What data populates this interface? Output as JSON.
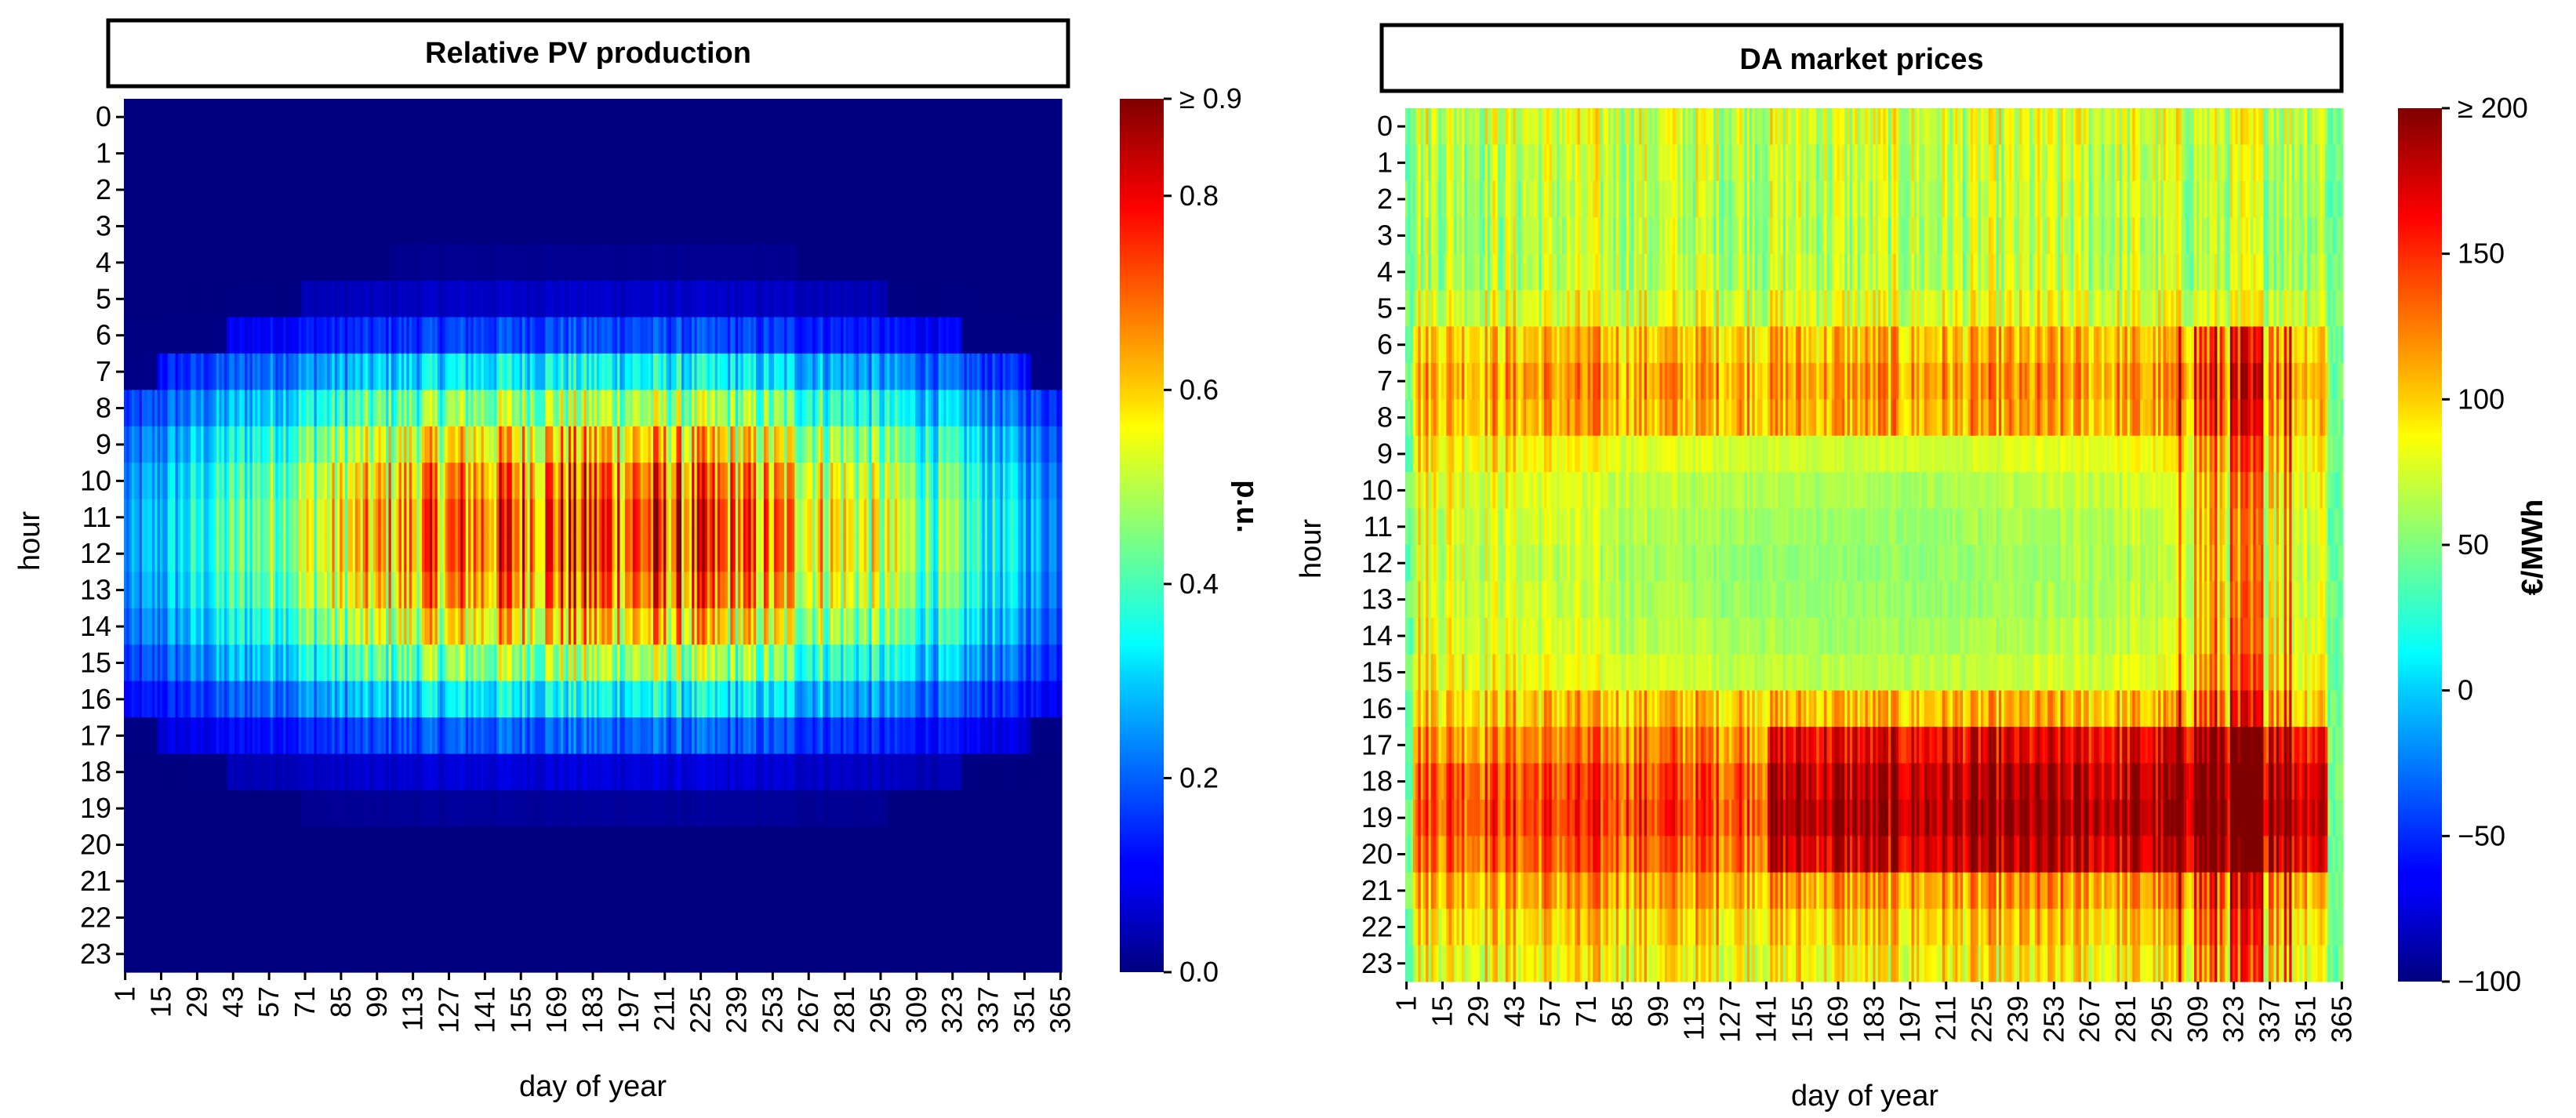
{
  "chart_data": [
    {
      "type": "heatmap",
      "title": "Relative PV production",
      "xlabel": "day of year",
      "ylabel": "hour",
      "x_range": [
        1,
        365
      ],
      "x_tick_labels": [
        "1",
        "15",
        "29",
        "43",
        "57",
        "71",
        "85",
        "99",
        "113",
        "127",
        "141",
        "155",
        "169",
        "183",
        "197",
        "211",
        "225",
        "239",
        "253",
        "267",
        "281",
        "295",
        "309",
        "323",
        "337",
        "351",
        "365"
      ],
      "y_tick_labels": [
        "0",
        "1",
        "2",
        "3",
        "4",
        "5",
        "6",
        "7",
        "8",
        "9",
        "10",
        "11",
        "12",
        "13",
        "14",
        "15",
        "16",
        "17",
        "18",
        "19",
        "20",
        "21",
        "22",
        "23"
      ],
      "colorbar": {
        "label": "p.u.",
        "min": 0.0,
        "max": 0.9,
        "tick_values": [
          0.0,
          0.2,
          0.4,
          0.6,
          0.8,
          0.9
        ],
        "tick_labels": [
          "0.0",
          "0.2",
          "0.4",
          "0.6",
          "0.8",
          "≥ 0.9"
        ],
        "colormap": "jet"
      },
      "value_description": "approximate daily profile: zero at night, peak around hour 11-12 in summer",
      "approx_peak_by_hour": [
        0,
        0,
        0,
        0,
        0.02,
        0.08,
        0.22,
        0.42,
        0.6,
        0.75,
        0.85,
        0.9,
        0.9,
        0.85,
        0.75,
        0.6,
        0.42,
        0.25,
        0.1,
        0.03,
        0,
        0,
        0,
        0
      ],
      "approx_seasonal_factor_winter_summer": [
        0.3,
        1.0
      ]
    },
    {
      "type": "heatmap",
      "title": "DA market prices",
      "xlabel": "day of year",
      "ylabel": "hour",
      "x_range": [
        1,
        365
      ],
      "x_tick_labels": [
        "1",
        "15",
        "29",
        "43",
        "57",
        "71",
        "85",
        "99",
        "113",
        "127",
        "141",
        "155",
        "169",
        "183",
        "197",
        "211",
        "225",
        "239",
        "253",
        "267",
        "281",
        "295",
        "309",
        "323",
        "337",
        "351",
        "365"
      ],
      "y_tick_labels": [
        "0",
        "1",
        "2",
        "3",
        "4",
        "5",
        "6",
        "7",
        "8",
        "9",
        "10",
        "11",
        "12",
        "13",
        "14",
        "15",
        "16",
        "17",
        "18",
        "19",
        "20",
        "21",
        "22",
        "23"
      ],
      "colorbar": {
        "label": "€/MWh",
        "min": -100,
        "max": 200,
        "tick_values": [
          -100,
          -50,
          0,
          50,
          100,
          150,
          200
        ],
        "tick_labels": [
          "−100",
          "−50",
          "0",
          "50",
          "100",
          "150",
          "≥ 200"
        ],
        "colormap": "jet"
      },
      "value_description": "approx: 60-90 €/MWh baseline, midday dips in spring/summer, evening peaks (hours 17-20) in autumn, very high prices around days 300-345",
      "approx_base_by_hour": [
        75,
        70,
        68,
        66,
        68,
        78,
        105,
        115,
        110,
        100,
        90,
        85,
        82,
        84,
        88,
        95,
        105,
        125,
        140,
        145,
        135,
        115,
        100,
        90
      ]
    }
  ]
}
